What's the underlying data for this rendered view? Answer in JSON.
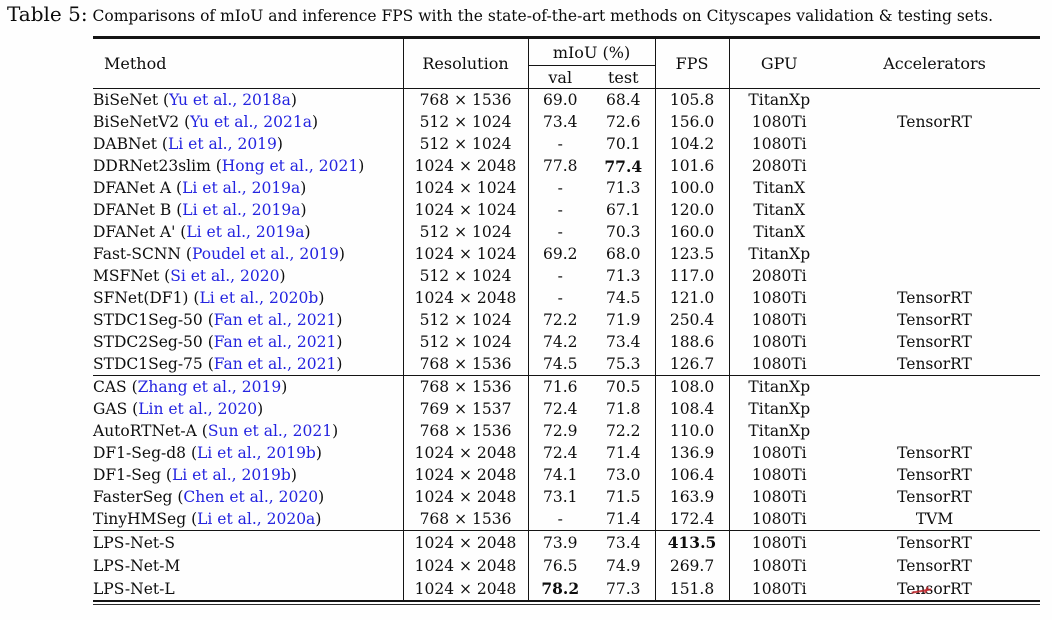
{
  "caption": {
    "label": "Table 5:",
    "text": " Comparisons of mIoU and inference FPS with the state-of-the-art methods on Cityscapes validation & testing sets."
  },
  "colors": {
    "citation_blue": "#2424e0",
    "rule_black": "#141414",
    "artifact_red": "#c2262a"
  },
  "table": {
    "headers": {
      "method": "Method",
      "resolution": "Resolution",
      "miou_group": "mIoU (%)",
      "val": "val",
      "test": "test",
      "fps": "FPS",
      "gpu": "GPU",
      "accelerators": "Accelerators"
    },
    "groups": [
      {
        "rows": [
          {
            "method": "BiSeNet",
            "cite": "Yu et al., 2018a",
            "resolution": "768 × 1536",
            "val": "69.0",
            "test": "68.4",
            "fps": "105.8",
            "gpu": "TitanXp",
            "accel": ""
          },
          {
            "method": "BiSeNetV2",
            "cite": "Yu et al., 2021a",
            "resolution": "512 × 1024",
            "val": "73.4",
            "test": "72.6",
            "fps": "156.0",
            "gpu": "1080Ti",
            "accel": "TensorRT"
          },
          {
            "method": "DABNet",
            "cite": "Li et al., 2019",
            "resolution": "512 × 1024",
            "val": "-",
            "test": "70.1",
            "fps": "104.2",
            "gpu": "1080Ti",
            "accel": ""
          },
          {
            "method": "DDRNet23slim",
            "cite": "Hong et al., 2021",
            "resolution": "1024 × 2048",
            "val": "77.8",
            "test": "77.4",
            "test_bold": true,
            "fps": "101.6",
            "gpu": "2080Ti",
            "accel": ""
          },
          {
            "method": "DFANet A",
            "cite": "Li et al., 2019a",
            "resolution": "1024 × 1024",
            "val": "-",
            "test": "71.3",
            "fps": "100.0",
            "gpu": "TitanX",
            "accel": ""
          },
          {
            "method": "DFANet B",
            "cite": "Li et al., 2019a",
            "resolution": "1024 × 1024",
            "val": "-",
            "test": "67.1",
            "fps": "120.0",
            "gpu": "TitanX",
            "accel": ""
          },
          {
            "method": "DFANet A'",
            "cite": "Li et al., 2019a",
            "resolution": "512 × 1024",
            "val": "-",
            "test": "70.3",
            "fps": "160.0",
            "gpu": "TitanX",
            "accel": ""
          },
          {
            "method": "Fast-SCNN",
            "cite": "Poudel et al., 2019",
            "resolution": "1024 × 1024",
            "val": "69.2",
            "test": "68.0",
            "fps": "123.5",
            "gpu": "TitanXp",
            "accel": ""
          },
          {
            "method": "MSFNet",
            "cite": "Si et al., 2020",
            "resolution": "512 × 1024",
            "val": "-",
            "test": "71.3",
            "fps": "117.0",
            "gpu": "2080Ti",
            "accel": ""
          },
          {
            "method": "SFNet(DF1)",
            "cite": "Li et al., 2020b",
            "resolution": "1024 × 2048",
            "val": "-",
            "test": "74.5",
            "fps": "121.0",
            "gpu": "1080Ti",
            "accel": "TensorRT"
          },
          {
            "method": "STDC1Seg-50",
            "cite": "Fan et al., 2021",
            "resolution": "512 × 1024",
            "val": "72.2",
            "test": "71.9",
            "fps": "250.4",
            "gpu": "1080Ti",
            "accel": "TensorRT"
          },
          {
            "method": "STDC2Seg-50",
            "cite": "Fan et al., 2021",
            "resolution": "512 × 1024",
            "val": "74.2",
            "test": "73.4",
            "fps": "188.6",
            "gpu": "1080Ti",
            "accel": "TensorRT"
          },
          {
            "method": "STDC1Seg-75",
            "cite": "Fan et al., 2021",
            "resolution": "768 × 1536",
            "val": "74.5",
            "test": "75.3",
            "fps": "126.7",
            "gpu": "1080Ti",
            "accel": "TensorRT"
          }
        ]
      },
      {
        "rows": [
          {
            "method": "CAS",
            "cite": "Zhang et al., 2019",
            "resolution": "768 × 1536",
            "val": "71.6",
            "test": "70.5",
            "fps": "108.0",
            "gpu": "TitanXp",
            "accel": ""
          },
          {
            "method": "GAS",
            "cite": "Lin et al., 2020",
            "resolution": "769 × 1537",
            "val": "72.4",
            "test": "71.8",
            "fps": "108.4",
            "gpu": "TitanXp",
            "accel": ""
          },
          {
            "method": "AutoRTNet-A",
            "cite": "Sun et al., 2021",
            "resolution": "768 × 1536",
            "val": "72.9",
            "test": "72.2",
            "fps": "110.0",
            "gpu": "TitanXp",
            "accel": ""
          },
          {
            "method": "DF1-Seg-d8",
            "cite": "Li et al., 2019b",
            "resolution": "1024 × 2048",
            "val": "72.4",
            "test": "71.4",
            "fps": "136.9",
            "gpu": "1080Ti",
            "accel": "TensorRT"
          },
          {
            "method": "DF1-Seg",
            "cite": "Li et al., 2019b",
            "resolution": "1024 × 2048",
            "val": "74.1",
            "test": "73.0",
            "fps": "106.4",
            "gpu": "1080Ti",
            "accel": "TensorRT"
          },
          {
            "method": "FasterSeg",
            "cite": "Chen et al., 2020",
            "resolution": "1024 × 2048",
            "val": "73.1",
            "test": "71.5",
            "fps": "163.9",
            "gpu": "1080Ti",
            "accel": "TensorRT"
          },
          {
            "method": "TinyHMSeg",
            "cite": "Li et al., 2020a",
            "resolution": "768 × 1536",
            "val": "-",
            "test": "71.4",
            "fps": "172.4",
            "gpu": "1080Ti",
            "accel": "TVM"
          }
        ]
      },
      {
        "rows": [
          {
            "method": "LPS-Net-S",
            "cite": "",
            "resolution": "1024 × 2048",
            "val": "73.9",
            "test": "73.4",
            "fps": "413.5",
            "fps_bold": true,
            "gpu": "1080Ti",
            "accel": "TensorRT"
          },
          {
            "method": "LPS-Net-M",
            "cite": "",
            "resolution": "1024 × 2048",
            "val": "76.5",
            "test": "74.9",
            "fps": "269.7",
            "gpu": "1080Ti",
            "accel": "TensorRT"
          },
          {
            "method": "LPS-Net-L",
            "cite": "",
            "resolution": "1024 × 2048",
            "val": "78.2",
            "val_bold": true,
            "test": "77.3",
            "fps": "151.8",
            "gpu": "1080Ti",
            "accel": "TensorRT"
          }
        ]
      }
    ]
  }
}
